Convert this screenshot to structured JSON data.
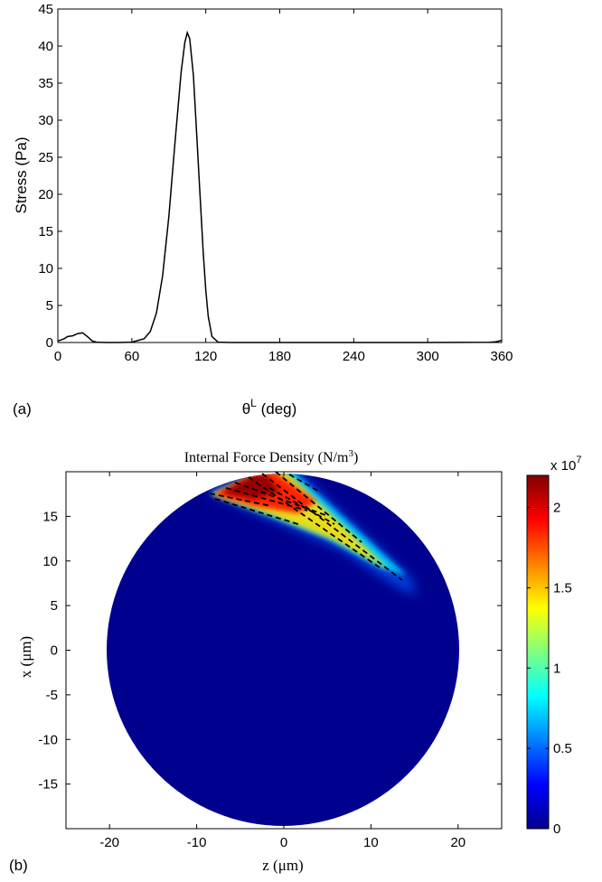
{
  "chart_data": [
    {
      "type": "line",
      "panel_label": "(a)",
      "xlabel": "θ",
      "xlabel_sup": "L",
      "xlabel_unit": " (deg)",
      "ylabel": "Stress (Pa)",
      "xlim": [
        0,
        360
      ],
      "ylim": [
        0,
        45
      ],
      "xticks": [
        0,
        60,
        120,
        180,
        240,
        300,
        360
      ],
      "yticks": [
        0,
        5,
        10,
        15,
        20,
        25,
        30,
        35,
        40,
        45
      ],
      "grid": false,
      "series": [
        {
          "x": [
            0,
            5,
            8,
            12,
            16,
            20,
            24,
            28,
            32,
            40,
            50,
            60,
            70,
            75,
            80,
            85,
            90,
            95,
            100,
            103,
            105,
            107,
            110,
            113,
            115,
            118,
            120,
            122,
            125,
            130,
            140,
            180,
            240,
            300,
            350,
            355,
            358,
            360
          ],
          "y": [
            0.2,
            0.5,
            0.8,
            0.9,
            1.2,
            1.3,
            0.8,
            0.2,
            0.02,
            0,
            0,
            0.05,
            0.5,
            1.5,
            4.0,
            9.0,
            17.0,
            27.0,
            36.5,
            40.5,
            41.8,
            41.0,
            36.0,
            27.0,
            21.0,
            12.0,
            7.0,
            3.5,
            0.8,
            0.05,
            0,
            0,
            0,
            0,
            0.02,
            0.1,
            0.2,
            0.3
          ]
        }
      ]
    },
    {
      "type": "heatmap",
      "panel_label": "(b)",
      "title": "Internal Force Density (N/m",
      "title_sup": "3",
      "title_end": ")",
      "xlabel": "z (μm)",
      "ylabel": "x (μm)",
      "xlim": [
        -25,
        25
      ],
      "ylim": [
        -20,
        20
      ],
      "xticks": [
        -20,
        -10,
        0,
        10,
        20
      ],
      "yticks": [
        -15,
        -10,
        -5,
        0,
        5,
        10,
        15
      ],
      "circle_radius": 20,
      "colorbar": {
        "multiplier_text": "x 10",
        "multiplier_exp": "7",
        "min": 0,
        "max": 2.2,
        "ticks": [
          0,
          0.5,
          1,
          1.5,
          2
        ],
        "tick_labels": [
          "0",
          "0.5",
          "1",
          "1.5",
          "2"
        ]
      }
    }
  ]
}
